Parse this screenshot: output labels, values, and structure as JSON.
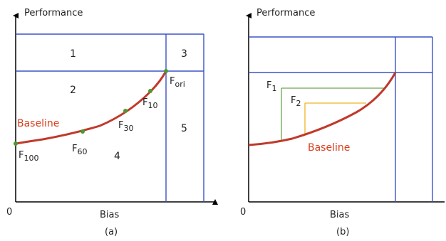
{
  "colors": {
    "frame": "#3a53c7",
    "curve": "#c0392b",
    "baseline_label": "#d9401f",
    "point": "#4a9a2e",
    "f1_bracket": "#6aa84f",
    "f2_bracket": "#f0b429",
    "axis": "#000000"
  },
  "panel_a": {
    "y_title": "Performance",
    "x_title": "Bias",
    "origin": "0",
    "caption": "(a)",
    "regions": [
      "1",
      "2",
      "3",
      "4",
      "5"
    ],
    "baseline_label": "Baseline",
    "points": [
      {
        "main": "F",
        "sub": "100"
      },
      {
        "main": "F",
        "sub": "60"
      },
      {
        "main": "F",
        "sub": "30"
      },
      {
        "main": "F",
        "sub": "10"
      },
      {
        "main": "F",
        "sub": "ori"
      }
    ]
  },
  "panel_b": {
    "y_title": "Performance",
    "x_title": "Bias",
    "origin": "0",
    "caption": "(b)",
    "baseline_label": "Baseline",
    "f1": {
      "main": "F",
      "sub": "1"
    },
    "f2": {
      "main": "F",
      "sub": "2"
    }
  }
}
